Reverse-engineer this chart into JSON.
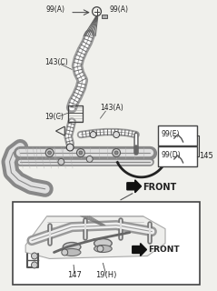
{
  "bg_color": "#f0f0ec",
  "line_color": "#404040",
  "text_color": "#222222",
  "white": "#ffffff",
  "gray_light": "#cccccc",
  "gray_mid": "#888888",
  "gray_dark": "#555555",
  "labels": {
    "99A_left": "99(A)",
    "99A_right": "99(A)",
    "143C": "143(C)",
    "143A": "143(A)",
    "19C": "19(C)",
    "99E": "99(E)",
    "99D": "99(D)",
    "145": "145",
    "front_top": "FRONT",
    "147": "147",
    "19H": "19(H)",
    "front_bot": "FRONT"
  },
  "font_size_small": 5.5,
  "font_size_med": 6.5,
  "font_size_front": 7
}
